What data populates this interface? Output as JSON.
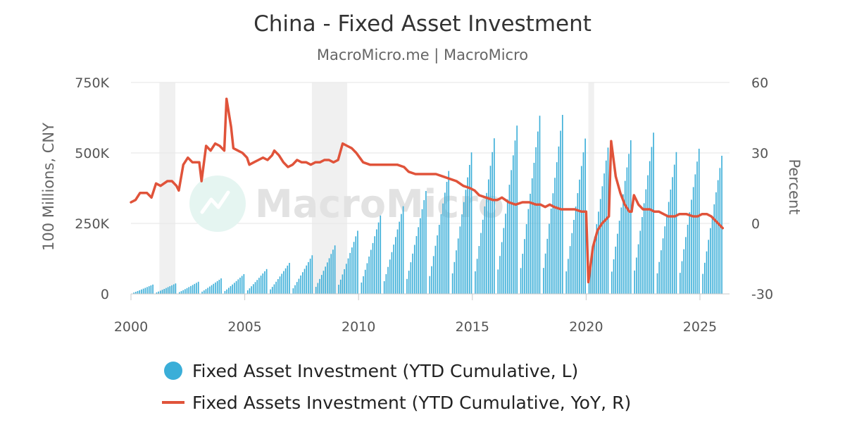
{
  "chart_data": {
    "type": "bar+line",
    "title": "China - Fixed Asset Investment",
    "subtitle": "MacroMicro.me | MacroMicro",
    "watermark": "MacroMicro",
    "ylabel_left": "100 Millions, CNY",
    "ylabel_right": "Percent",
    "x_ticks": [
      "2000",
      "2005",
      "2010",
      "2015",
      "2020",
      "2025"
    ],
    "x_range": [
      2000,
      2026.3
    ],
    "y_left_ticks": [
      "0",
      "250K",
      "500K",
      "750K"
    ],
    "y_left_range": [
      0,
      750000
    ],
    "y_right_ticks": [
      "-30",
      "0",
      "30",
      "60"
    ],
    "y_right_range": [
      -30,
      60
    ],
    "grid": true,
    "legend_position": "bottom",
    "shaded_periods": [
      [
        2001.25,
        2001.95
      ],
      [
        2007.95,
        2009.5
      ],
      [
        2020.1,
        2020.35
      ]
    ],
    "colors": {
      "bars": "#3aaed8",
      "line": "#e0533a",
      "shade": "#f0f0f0",
      "grid": "#e6e6e6"
    },
    "series": [
      {
        "name": "Fixed Asset Investment (YTD Cumulative, L)",
        "kind": "bar",
        "annual_totals": [
          [
            2000,
            33000
          ],
          [
            2001,
            37000
          ],
          [
            2002,
            43000
          ],
          [
            2003,
            55000
          ],
          [
            2004,
            70000
          ],
          [
            2005,
            88000
          ],
          [
            2006,
            110000
          ],
          [
            2007,
            137000
          ],
          [
            2008,
            172000
          ],
          [
            2009,
            224000
          ],
          [
            2010,
            278000
          ],
          [
            2011,
            311000
          ],
          [
            2012,
            365000
          ],
          [
            2013,
            436000
          ],
          [
            2014,
            502000
          ],
          [
            2015,
            552000
          ],
          [
            2016,
            597000
          ],
          [
            2017,
            632000
          ],
          [
            2018,
            635000
          ],
          [
            2019,
            551000
          ],
          [
            2020,
            519000
          ],
          [
            2021,
            545000
          ],
          [
            2022,
            572000
          ],
          [
            2023,
            503000
          ],
          [
            2024,
            515000
          ],
          [
            2025,
            490000
          ]
        ]
      },
      {
        "name": "Fixed Assets Investment (YTD Cumulative, YoY, R)",
        "kind": "line",
        "points": [
          [
            2000.0,
            9
          ],
          [
            2000.2,
            10
          ],
          [
            2000.4,
            13
          ],
          [
            2000.7,
            13
          ],
          [
            2000.9,
            11
          ],
          [
            2001.1,
            17
          ],
          [
            2001.3,
            16
          ],
          [
            2001.6,
            18
          ],
          [
            2001.8,
            18
          ],
          [
            2002.0,
            16
          ],
          [
            2002.1,
            14
          ],
          [
            2002.3,
            25
          ],
          [
            2002.5,
            28
          ],
          [
            2002.7,
            26
          ],
          [
            2002.9,
            26
          ],
          [
            2003.0,
            26
          ],
          [
            2003.1,
            18
          ],
          [
            2003.3,
            33
          ],
          [
            2003.5,
            31
          ],
          [
            2003.7,
            34
          ],
          [
            2003.9,
            33
          ],
          [
            2004.1,
            31
          ],
          [
            2004.2,
            53
          ],
          [
            2004.4,
            41
          ],
          [
            2004.5,
            32
          ],
          [
            2004.7,
            31
          ],
          [
            2004.9,
            30
          ],
          [
            2005.1,
            28
          ],
          [
            2005.2,
            25
          ],
          [
            2005.4,
            26
          ],
          [
            2005.6,
            27
          ],
          [
            2005.8,
            28
          ],
          [
            2006.0,
            27
          ],
          [
            2006.2,
            29
          ],
          [
            2006.3,
            31
          ],
          [
            2006.5,
            29
          ],
          [
            2006.7,
            26
          ],
          [
            2006.9,
            24
          ],
          [
            2007.1,
            25
          ],
          [
            2007.3,
            27
          ],
          [
            2007.5,
            26
          ],
          [
            2007.7,
            26
          ],
          [
            2007.9,
            25
          ],
          [
            2008.1,
            26
          ],
          [
            2008.3,
            26
          ],
          [
            2008.5,
            27
          ],
          [
            2008.7,
            27
          ],
          [
            2008.9,
            26
          ],
          [
            2009.1,
            27
          ],
          [
            2009.3,
            34
          ],
          [
            2009.5,
            33
          ],
          [
            2009.7,
            32
          ],
          [
            2009.9,
            30
          ],
          [
            2010.2,
            26
          ],
          [
            2010.5,
            25
          ],
          [
            2010.8,
            25
          ],
          [
            2011.1,
            25
          ],
          [
            2011.4,
            25
          ],
          [
            2011.7,
            25
          ],
          [
            2012.0,
            24
          ],
          [
            2012.2,
            22
          ],
          [
            2012.5,
            21
          ],
          [
            2012.8,
            21
          ],
          [
            2013.1,
            21
          ],
          [
            2013.4,
            21
          ],
          [
            2013.7,
            20
          ],
          [
            2014.0,
            19
          ],
          [
            2014.3,
            18
          ],
          [
            2014.6,
            16
          ],
          [
            2014.9,
            15
          ],
          [
            2015.1,
            14
          ],
          [
            2015.3,
            12
          ],
          [
            2015.6,
            11
          ],
          [
            2015.9,
            10
          ],
          [
            2016.1,
            10
          ],
          [
            2016.3,
            11
          ],
          [
            2016.6,
            9
          ],
          [
            2016.9,
            8
          ],
          [
            2017.2,
            9
          ],
          [
            2017.5,
            9
          ],
          [
            2017.8,
            8
          ],
          [
            2018.0,
            8
          ],
          [
            2018.2,
            7
          ],
          [
            2018.4,
            8
          ],
          [
            2018.6,
            7
          ],
          [
            2018.9,
            6
          ],
          [
            2019.2,
            6
          ],
          [
            2019.5,
            6
          ],
          [
            2019.8,
            5
          ],
          [
            2020.0,
            5
          ],
          [
            2020.1,
            -25
          ],
          [
            2020.3,
            -10
          ],
          [
            2020.5,
            -3
          ],
          [
            2020.7,
            0
          ],
          [
            2020.9,
            2
          ],
          [
            2021.0,
            3
          ],
          [
            2021.1,
            35
          ],
          [
            2021.3,
            20
          ],
          [
            2021.5,
            13
          ],
          [
            2021.7,
            8
          ],
          [
            2021.9,
            5
          ],
          [
            2022.0,
            5
          ],
          [
            2022.1,
            12
          ],
          [
            2022.3,
            8
          ],
          [
            2022.5,
            6
          ],
          [
            2022.8,
            6
          ],
          [
            2023.0,
            5
          ],
          [
            2023.2,
            5
          ],
          [
            2023.4,
            4
          ],
          [
            2023.6,
            3
          ],
          [
            2023.9,
            3
          ],
          [
            2024.1,
            4
          ],
          [
            2024.4,
            4
          ],
          [
            2024.7,
            3
          ],
          [
            2024.9,
            3
          ],
          [
            2025.1,
            4
          ],
          [
            2025.3,
            4
          ],
          [
            2025.5,
            3
          ],
          [
            2025.7,
            1
          ],
          [
            2025.9,
            -1
          ],
          [
            2026.0,
            -2
          ]
        ]
      }
    ]
  }
}
